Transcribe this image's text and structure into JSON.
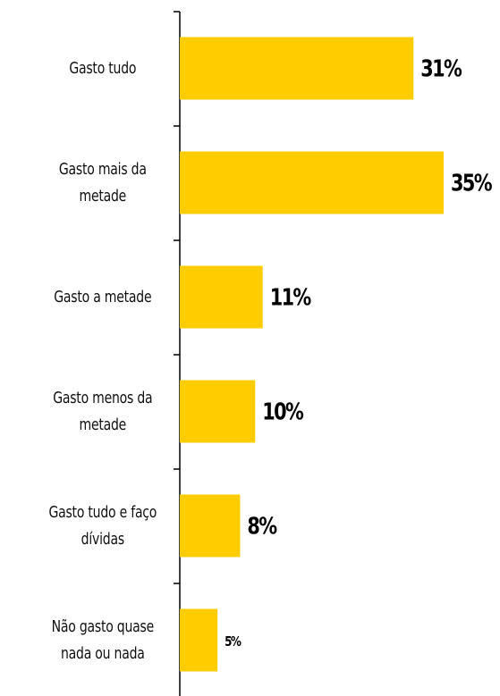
{
  "chart_data": {
    "type": "bar",
    "orientation": "horizontal",
    "categories": [
      "Gasto tudo",
      "Gasto mais da metade",
      "Gasto a metade",
      "Gasto menos da metade",
      "Gasto tudo e faço dívidas",
      "Não gasto quase nada ou nada"
    ],
    "values": [
      31,
      35,
      11,
      10,
      8,
      5
    ],
    "value_labels": [
      "31%",
      "35%",
      "11%",
      "10%",
      "8%",
      "5%"
    ],
    "color": "#ffcc00"
  }
}
